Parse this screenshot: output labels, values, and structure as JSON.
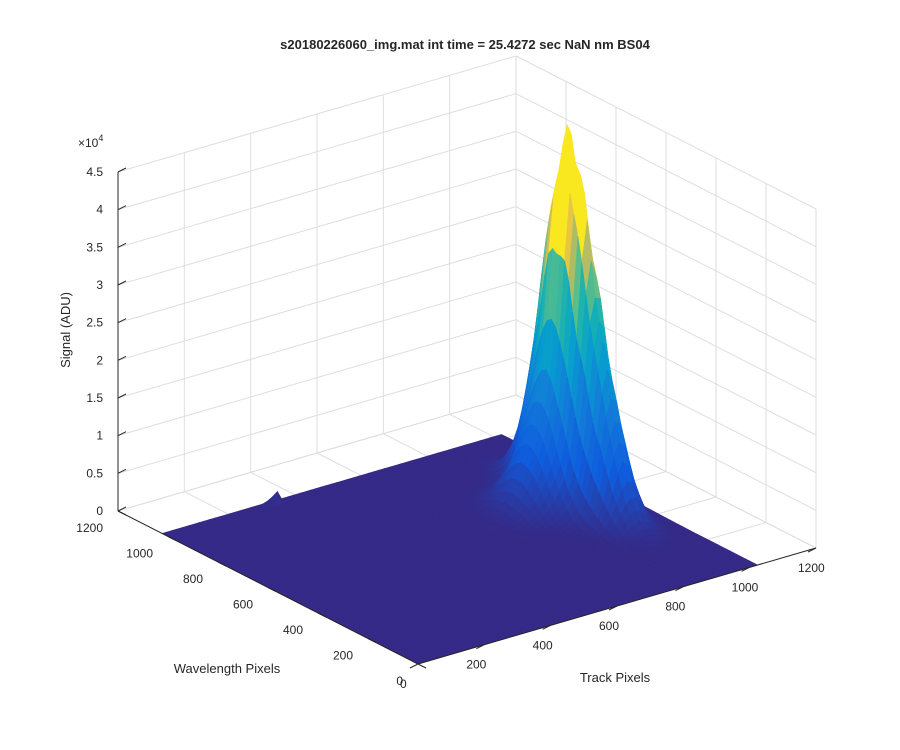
{
  "chart_data": {
    "type": "surface",
    "title": "s20180226060_img.mat int time = 25.4272 sec  NaN nm BS04",
    "xlabel": "Track Pixels",
    "ylabel": "Wavelength Pixels",
    "zlabel": "Signal (ADU)",
    "z_exponent_label": "×10",
    "z_exponent_power": "4",
    "x_ticks": [
      "0",
      "200",
      "400",
      "600",
      "800",
      "1000",
      "1200"
    ],
    "y_ticks": [
      "0",
      "200",
      "400",
      "600",
      "800",
      "1000",
      "1200"
    ],
    "z_ticks": [
      "0",
      "0.5",
      "1",
      "1.5",
      "2",
      "2.5",
      "3",
      "3.5",
      "4",
      "4.5"
    ],
    "xlim": [
      0,
      1200
    ],
    "ylim": [
      0,
      1200
    ],
    "zlim": [
      0,
      45000
    ],
    "grid": true,
    "colormap": "parula",
    "surface_extent": {
      "track": [
        0,
        1024
      ],
      "wavelength": [
        0,
        1024
      ]
    },
    "baseline_signal": 0,
    "peak_signal": 37500,
    "peak_location": {
      "track": 900,
      "wavelength": 580
    },
    "colors": {
      "low": "#352a87",
      "mid": "#15b9b5",
      "high": "#f9e720"
    }
  }
}
